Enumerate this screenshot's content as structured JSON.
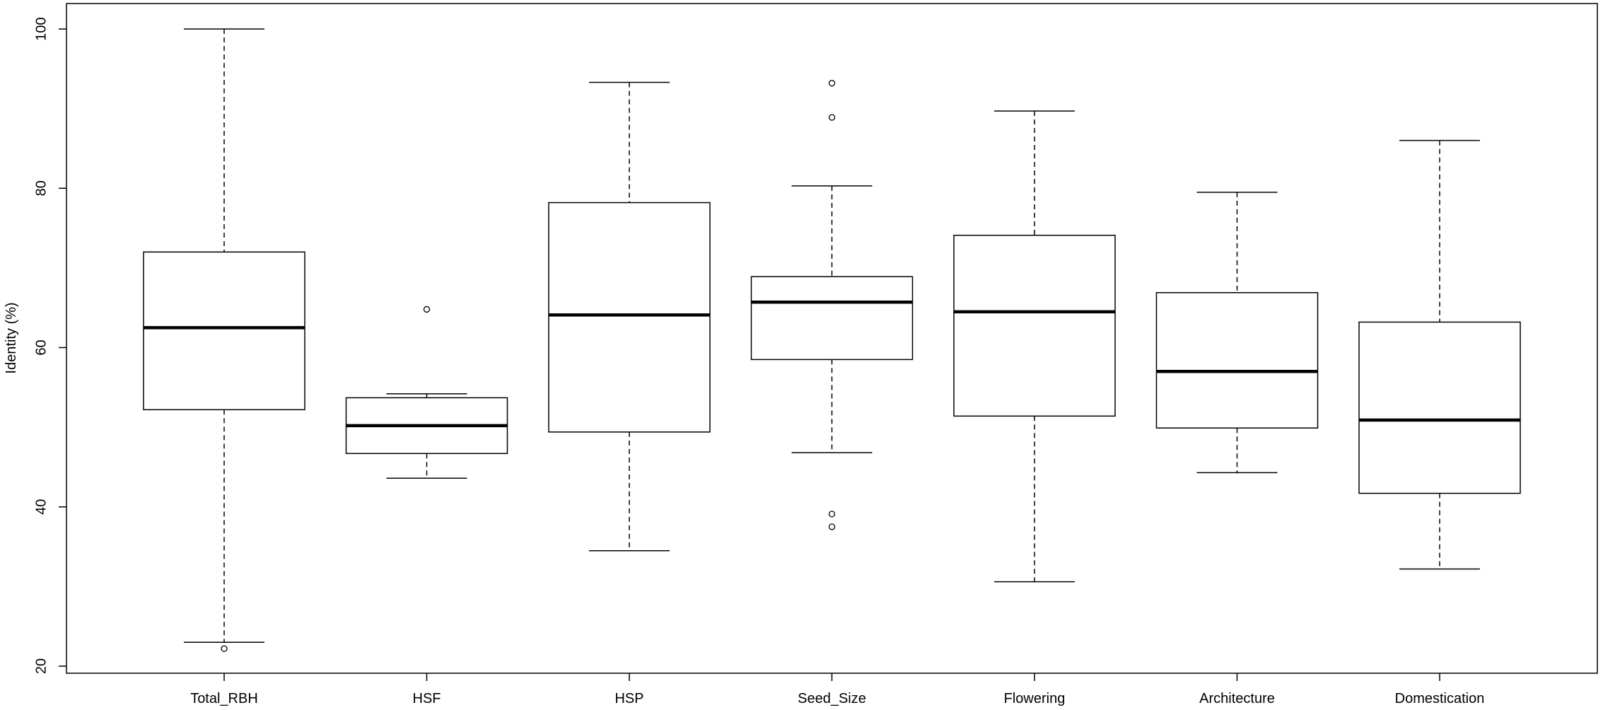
{
  "chart_data": {
    "type": "boxplot",
    "title": "",
    "xlabel": "",
    "ylabel": "Identity (%)",
    "ylim": [
      19,
      102
    ],
    "yticks": [
      20,
      40,
      60,
      80,
      100
    ],
    "grid": false,
    "categories": [
      "Total_RBH",
      "HSF",
      "HSP",
      "Seed_Size",
      "Flowering",
      "Architecture",
      "Domestication"
    ],
    "boxes": [
      {
        "name": "Total_RBH",
        "whisker_low": 23.0,
        "q1": 52.2,
        "median": 62.5,
        "q3": 72.0,
        "whisker_high": 100.0,
        "outliers": [
          22.2
        ]
      },
      {
        "name": "HSF",
        "whisker_low": 43.6,
        "q1": 46.7,
        "median": 50.2,
        "q3": 53.7,
        "whisker_high": 54.2,
        "outliers": [
          64.8
        ]
      },
      {
        "name": "HSP",
        "whisker_low": 34.5,
        "q1": 49.4,
        "median": 64.1,
        "q3": 78.2,
        "whisker_high": 93.3,
        "outliers": []
      },
      {
        "name": "Seed_Size",
        "whisker_low": 46.8,
        "q1": 58.5,
        "median": 65.7,
        "q3": 68.9,
        "whisker_high": 80.3,
        "outliers": [
          93.2,
          88.9,
          39.1,
          37.5
        ]
      },
      {
        "name": "Flowering",
        "whisker_low": 30.6,
        "q1": 51.4,
        "median": 64.5,
        "q3": 74.1,
        "whisker_high": 89.7,
        "outliers": []
      },
      {
        "name": "Architecture",
        "whisker_low": 44.3,
        "q1": 49.9,
        "median": 57.0,
        "q3": 66.9,
        "whisker_high": 79.5,
        "outliers": []
      },
      {
        "name": "Domestication",
        "whisker_low": 32.2,
        "q1": 41.7,
        "median": 50.9,
        "q3": 63.2,
        "whisker_high": 86.0,
        "outliers": []
      }
    ]
  }
}
